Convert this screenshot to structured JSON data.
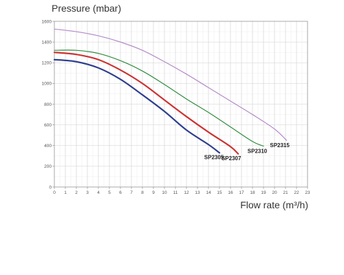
{
  "chart_data": {
    "type": "line",
    "title": "",
    "ylabel": "Pressure (mbar)",
    "xlabel": "Flow rate (m³/h)",
    "xlim": [
      0,
      23
    ],
    "ylim": [
      0,
      1600
    ],
    "x_ticks": [
      "0",
      "1",
      "2",
      "3",
      "4",
      "5",
      "6",
      "7",
      "8",
      "9",
      "10",
      "11",
      "12",
      "13",
      "14",
      "15",
      "16",
      "17",
      "18",
      "19",
      "20",
      "21",
      "22",
      "23"
    ],
    "y_ticks": [
      "0",
      "200",
      "400",
      "600",
      "800",
      "1000",
      "1200",
      "1400",
      "1600"
    ],
    "grid": true,
    "series": [
      {
        "name": "SP2305",
        "color": "#2e3f8f",
        "points": [
          [
            0,
            1230
          ],
          [
            2,
            1210
          ],
          [
            4,
            1150
          ],
          [
            6,
            1040
          ],
          [
            8,
            890
          ],
          [
            10,
            730
          ],
          [
            12,
            550
          ],
          [
            14,
            410
          ],
          [
            15,
            330
          ]
        ]
      },
      {
        "name": "SP2307",
        "color": "#cc3333",
        "points": [
          [
            0,
            1300
          ],
          [
            2,
            1280
          ],
          [
            4,
            1230
          ],
          [
            6,
            1130
          ],
          [
            8,
            1000
          ],
          [
            10,
            840
          ],
          [
            12,
            680
          ],
          [
            14,
            530
          ],
          [
            16,
            390
          ],
          [
            16.7,
            320
          ]
        ]
      },
      {
        "name": "SP2310",
        "color": "#2e8b3e",
        "points": [
          [
            0,
            1320
          ],
          [
            2,
            1320
          ],
          [
            4,
            1290
          ],
          [
            6,
            1220
          ],
          [
            8,
            1120
          ],
          [
            10,
            990
          ],
          [
            12,
            850
          ],
          [
            14,
            720
          ],
          [
            16,
            580
          ],
          [
            18,
            440
          ],
          [
            19,
            395
          ]
        ]
      },
      {
        "name": "SP2315",
        "color": "#b48ac8",
        "points": [
          [
            0,
            1525
          ],
          [
            2,
            1500
          ],
          [
            4,
            1460
          ],
          [
            6,
            1400
          ],
          [
            8,
            1320
          ],
          [
            10,
            1210
          ],
          [
            12,
            1090
          ],
          [
            14,
            960
          ],
          [
            16,
            830
          ],
          [
            18,
            700
          ],
          [
            20,
            560
          ],
          [
            21.1,
            450
          ]
        ]
      }
    ]
  }
}
